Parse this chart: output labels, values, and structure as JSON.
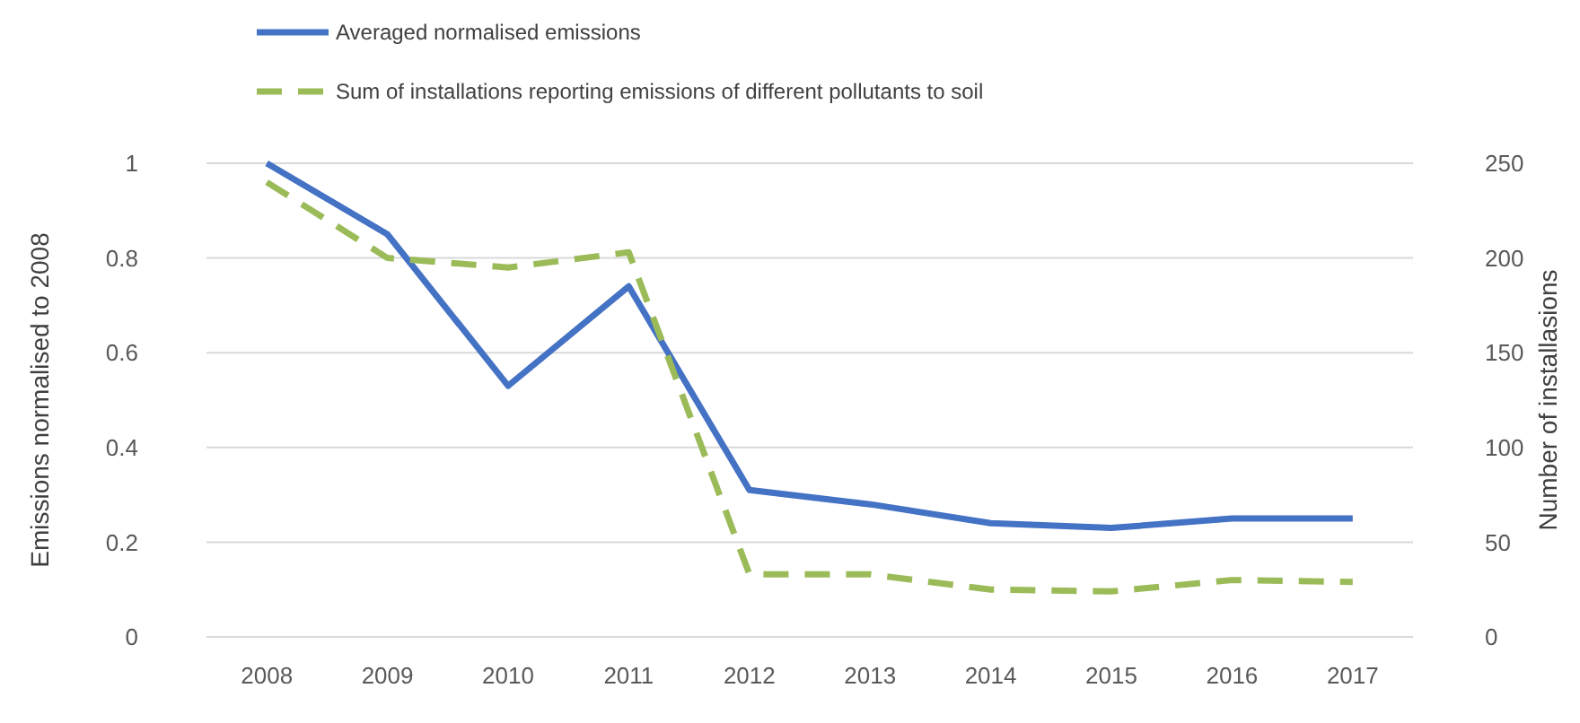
{
  "chart_data": {
    "type": "line",
    "ylabel": "Emissions normalised to 2008",
    "y2label": "Number of installasions",
    "categories": [
      "2008",
      "2009",
      "2010",
      "2011",
      "2012",
      "2013",
      "2014",
      "2015",
      "2016",
      "2017"
    ],
    "series": [
      {
        "name": "Averaged normalised emissions",
        "color": "#4472c4",
        "line_style": "solid",
        "values": [
          1,
          0.85,
          0.53,
          0.74,
          0.31,
          0.28,
          0.24,
          0.23,
          0.25,
          0.25
        ]
      },
      {
        "name": "Sum of installations reporting emissions of different pollutants to soil",
        "color": "#9bbb59",
        "line_style": "dashed",
        "axis": "y2",
        "values": [
          240,
          200,
          195,
          203,
          33,
          33,
          25,
          24,
          30,
          29
        ]
      }
    ],
    "ylim": [
      0,
      1
    ],
    "yticks": [
      0,
      0.2,
      0.4,
      0.6,
      0.8,
      1
    ],
    "y2lim": [
      0,
      250
    ],
    "y2ticks": [
      0,
      50,
      100,
      150,
      200,
      250
    ],
    "grid": "y",
    "legend": "top left"
  }
}
